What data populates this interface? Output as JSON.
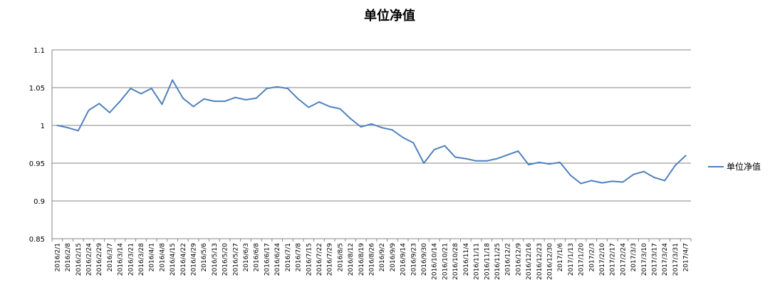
{
  "chart_data": {
    "type": "line",
    "title": "单位净值",
    "xlabel": "",
    "ylabel": "",
    "ylim": [
      0.85,
      1.1
    ],
    "yticks": [
      "0.85",
      "0.9",
      "0.95",
      "1",
      "1.05",
      "1.1"
    ],
    "grid": true,
    "legend_position": "right",
    "categories": [
      "2016/2/1",
      "2016/2/8",
      "2016/2/15",
      "2016/2/24",
      "2016/2/29",
      "2016/3/7",
      "2016/3/14",
      "2016/3/21",
      "2016/3/28",
      "2016/4/1",
      "2016/4/8",
      "2016/4/15",
      "2016/4/22",
      "2016/4/29",
      "2016/5/6",
      "2016/5/13",
      "2016/5/20",
      "2016/5/27",
      "2016/6/3",
      "2016/6/8",
      "2016/6/17",
      "2016/6/24",
      "2016/7/1",
      "2016/7/8",
      "2016/7/15",
      "2016/7/22",
      "2016/7/29",
      "2016/8/5",
      "2016/8/12",
      "2016/8/19",
      "2016/8/26",
      "2016/9/2",
      "2016/9/9",
      "2016/9/14",
      "2016/9/23",
      "2016/9/30",
      "2016/10/14",
      "2016/10/21",
      "2016/10/28",
      "2016/11/4",
      "2016/11/11",
      "2016/11/18",
      "2016/11/25",
      "2016/12/2",
      "2016/12/9",
      "2016/12/16",
      "2016/12/23",
      "2016/12/30",
      "2017/1/6",
      "2017/1/13",
      "2017/1/20",
      "2017/2/3",
      "2017/2/10",
      "2017/2/17",
      "2017/2/24",
      "2017/3/3",
      "2017/3/10",
      "2017/3/17",
      "2017/3/24",
      "2017/3/31",
      "2017/4/7"
    ],
    "series": [
      {
        "name": "单位净值",
        "color": "#4f81bd",
        "values": [
          1.0,
          0.997,
          0.993,
          1.02,
          1.029,
          1.017,
          1.032,
          1.049,
          1.042,
          1.049,
          1.028,
          1.06,
          1.036,
          1.025,
          1.035,
          1.032,
          1.032,
          1.037,
          1.034,
          1.036,
          1.049,
          1.051,
          1.049,
          1.035,
          1.024,
          1.031,
          1.025,
          1.022,
          1.009,
          0.998,
          1.002,
          0.997,
          0.994,
          0.984,
          0.977,
          0.95,
          0.968,
          0.973,
          0.958,
          0.956,
          0.953,
          0.953,
          0.956,
          0.961,
          0.966,
          0.948,
          0.951,
          0.949,
          0.951,
          0.934,
          0.923,
          0.927,
          0.924,
          0.926,
          0.925,
          0.935,
          0.939,
          0.931,
          0.927,
          0.947,
          0.96
        ]
      }
    ]
  }
}
